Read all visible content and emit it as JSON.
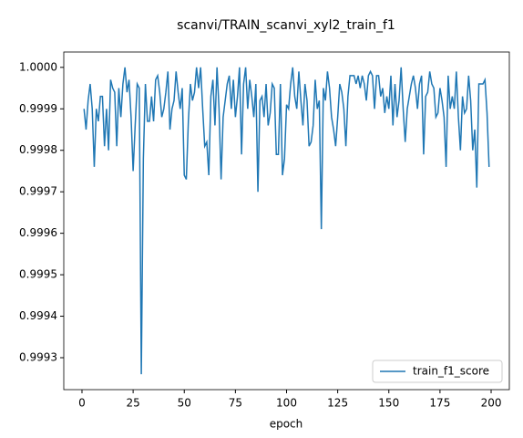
{
  "chart_data": {
    "type": "line",
    "title": "scanvi/TRAIN_scanvi_xyl2_train_f1",
    "xlabel": "epoch",
    "x": [
      1,
      2,
      3,
      4,
      5,
      6,
      7,
      8,
      9,
      10,
      11,
      12,
      13,
      14,
      15,
      16,
      17,
      18,
      19,
      20,
      21,
      22,
      23,
      24,
      25,
      26,
      27,
      28,
      29,
      30,
      31,
      32,
      33,
      34,
      35,
      36,
      37,
      38,
      39,
      40,
      41,
      42,
      43,
      44,
      45,
      46,
      47,
      48,
      49,
      50,
      51,
      52,
      53,
      54,
      55,
      56,
      57,
      58,
      59,
      60,
      61,
      62,
      63,
      64,
      65,
      66,
      67,
      68,
      69,
      70,
      71,
      72,
      73,
      74,
      75,
      76,
      77,
      78,
      79,
      80,
      81,
      82,
      83,
      84,
      85,
      86,
      87,
      88,
      89,
      90,
      91,
      92,
      93,
      94,
      95,
      96,
      97,
      98,
      99,
      100,
      101,
      102,
      103,
      104,
      105,
      106,
      107,
      108,
      109,
      110,
      111,
      112,
      113,
      114,
      115,
      116,
      117,
      118,
      119,
      120,
      121,
      122,
      123,
      124,
      125,
      126,
      127,
      128,
      129,
      130,
      131,
      132,
      133,
      134,
      135,
      136,
      137,
      138,
      139,
      140,
      141,
      142,
      143,
      144,
      145,
      146,
      147,
      148,
      149,
      150,
      151,
      152,
      153,
      154,
      155,
      156,
      157,
      158,
      159,
      160,
      161,
      162,
      163,
      164,
      165,
      166,
      167,
      168,
      169,
      170,
      171,
      172,
      173,
      174,
      175,
      176,
      177,
      178,
      179,
      180,
      181,
      182,
      183,
      184,
      185,
      186,
      187,
      188,
      189,
      190,
      191,
      192,
      193,
      194,
      195,
      196,
      197,
      198,
      199
    ],
    "series": [
      {
        "name": "train_f1_score",
        "color": "#1f77b4",
        "values": [
          0.9999,
          0.99985,
          0.99992,
          0.99996,
          0.9999,
          0.99976,
          0.9999,
          0.99987,
          0.99993,
          0.99993,
          0.99981,
          0.9999,
          0.9998,
          0.99997,
          0.99995,
          0.99994,
          0.99981,
          0.99995,
          0.99988,
          0.99996,
          1.0,
          0.99994,
          0.99997,
          0.99988,
          0.99975,
          0.99986,
          0.99996,
          0.99995,
          0.99926,
          0.99978,
          0.99996,
          0.99987,
          0.99987,
          0.99993,
          0.99987,
          0.99997,
          0.99998,
          0.99994,
          0.99988,
          0.9999,
          0.99994,
          0.99999,
          0.99985,
          0.9999,
          0.99992,
          0.99999,
          0.99994,
          0.9999,
          0.99995,
          0.99974,
          0.99973,
          0.99987,
          0.99996,
          0.99992,
          0.99994,
          1.0,
          0.99995,
          1.0,
          0.9999,
          0.99981,
          0.99982,
          0.99974,
          0.99993,
          0.99997,
          0.99986,
          1.0,
          0.9999,
          0.99973,
          0.99988,
          0.99992,
          0.99996,
          0.99998,
          0.9999,
          0.99997,
          0.99988,
          0.99993,
          1.0,
          0.99979,
          0.99996,
          1.0,
          0.9999,
          0.99997,
          0.99993,
          0.99988,
          0.99996,
          0.9997,
          0.99992,
          0.99993,
          0.99988,
          0.99996,
          0.99986,
          0.99989,
          0.99996,
          0.99995,
          0.99979,
          0.99979,
          0.99996,
          0.99974,
          0.99978,
          0.99991,
          0.9999,
          0.99996,
          1.0,
          0.99993,
          0.9999,
          0.99999,
          0.99992,
          0.99986,
          0.99996,
          0.99992,
          0.99981,
          0.99982,
          0.99986,
          0.99997,
          0.9999,
          0.99992,
          0.99961,
          0.99995,
          0.99992,
          0.99999,
          0.99995,
          0.99988,
          0.99985,
          0.99981,
          0.99988,
          0.99996,
          0.99994,
          0.9999,
          0.99981,
          0.99993,
          0.99998,
          0.99998,
          0.99998,
          0.99996,
          0.99998,
          0.99995,
          0.99998,
          0.99996,
          0.99992,
          0.99998,
          0.99999,
          0.99998,
          0.9999,
          0.99998,
          0.99998,
          0.99993,
          0.99995,
          0.99989,
          0.99993,
          0.9999,
          0.99998,
          0.99986,
          0.99996,
          0.99988,
          0.99992,
          1.0,
          0.9999,
          0.99982,
          0.9999,
          0.99993,
          0.99996,
          0.99998,
          0.99995,
          0.9999,
          0.99996,
          0.99998,
          0.99979,
          0.99993,
          0.99994,
          0.99999,
          0.99996,
          0.99995,
          0.99988,
          0.99989,
          0.99995,
          0.99992,
          0.99988,
          0.99976,
          0.99998,
          0.9999,
          0.99993,
          0.9999,
          0.99999,
          0.99988,
          0.9998,
          0.99993,
          0.99989,
          0.9999,
          0.99998,
          0.99992,
          0.9998,
          0.99985,
          0.99971,
          0.99996,
          0.99996,
          0.99996,
          0.99997,
          0.99989,
          0.99976
        ]
      }
    ],
    "xlim": [
      -8.9,
      208.9
    ],
    "xticks": [
      0,
      25,
      50,
      75,
      100,
      125,
      150,
      175,
      200
    ],
    "ylim": [
      0.999223,
      1.000037
    ],
    "yticks": [
      0.9993,
      0.9994,
      0.9995,
      0.9996,
      0.9997,
      0.9998,
      0.9999,
      {
        "value": 1,
        "label": "1.0000"
      }
    ],
    "grid": false,
    "legend": "lower right"
  }
}
